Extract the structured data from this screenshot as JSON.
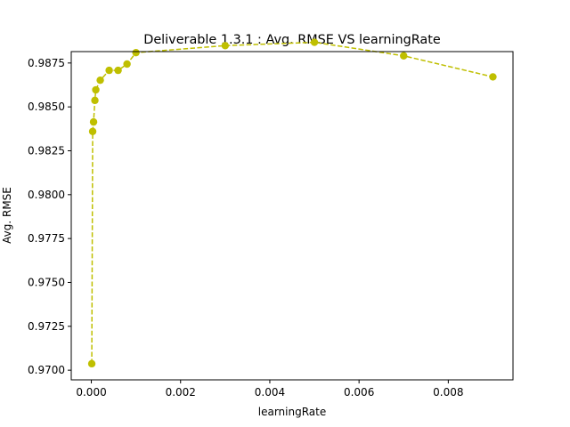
{
  "chart_data": {
    "type": "line",
    "title": "Deliverable 1.3.1 : Avg. RMSE VS learningRate",
    "xlabel": "learningRate",
    "ylabel": "Avg. RMSE",
    "xlim": [
      -0.00045,
      0.00945
    ],
    "ylim": [
      0.96945,
      0.98815
    ],
    "xticks": [
      0.0,
      0.002,
      0.004,
      0.006,
      0.008
    ],
    "xtick_labels": [
      "0.000",
      "0.002",
      "0.004",
      "0.006",
      "0.008"
    ],
    "yticks": [
      0.97,
      0.9725,
      0.975,
      0.9775,
      0.98,
      0.9825,
      0.985,
      0.9875
    ],
    "ytick_labels": [
      "0.9700",
      "0.9725",
      "0.9750",
      "0.9775",
      "0.9800",
      "0.9825",
      "0.9850",
      "0.9875"
    ],
    "grid": false,
    "line_style": "dashed",
    "marker": "circle",
    "color": "#bfbf00",
    "series": [
      {
        "x": [
          1e-05,
          3e-05,
          5e-05,
          8e-05,
          0.0001,
          0.0002,
          0.0004,
          0.0006,
          0.0008,
          0.001,
          0.003,
          0.005,
          0.007,
          0.009
        ],
        "y": [
          0.97037,
          0.9836,
          0.98414,
          0.98537,
          0.98597,
          0.98652,
          0.98708,
          0.98708,
          0.98744,
          0.98809,
          0.98849,
          0.98868,
          0.98791,
          0.98671
        ]
      }
    ]
  }
}
